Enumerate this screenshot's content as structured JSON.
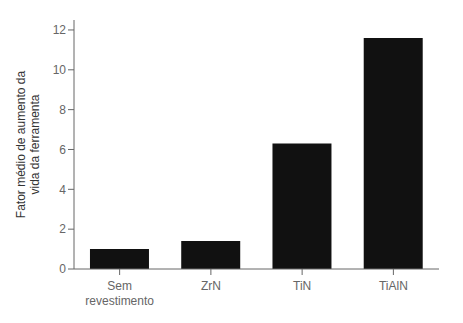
{
  "chart_data": {
    "type": "bar",
    "categories": [
      "Sem\nrevestimento",
      "ZrN",
      "TiN",
      "TiAlN"
    ],
    "values": [
      1.0,
      1.4,
      6.3,
      11.6
    ],
    "color": "#111111",
    "ylabel": "Fator médio de aumento da\nvida da ferramenta",
    "ylim": [
      0,
      12.5
    ],
    "yticks": [
      0,
      2,
      4,
      6,
      8,
      10,
      12
    ],
    "grid": false
  }
}
